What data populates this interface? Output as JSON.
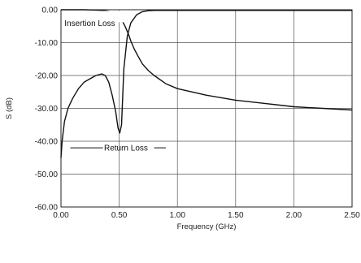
{
  "chart_data": {
    "type": "line",
    "xlabel": "Frequency (GHz)",
    "ylabel": "S (dB)",
    "xlim": [
      0,
      2.5
    ],
    "ylim": [
      -60,
      0
    ],
    "x_ticks": [
      0,
      0.5,
      1.0,
      1.5,
      2.0,
      2.5
    ],
    "x_tick_labels": [
      "0.00",
      "0.50",
      "1.00",
      "1.50",
      "2.00",
      "2.50"
    ],
    "y_ticks": [
      0,
      -10,
      -20,
      -30,
      -40,
      -50,
      -60
    ],
    "y_tick_labels": [
      "0.00",
      "-10.00",
      "-20.00",
      "-30.00",
      "-40.00",
      "-50.00",
      "-60.00"
    ],
    "grid": true,
    "annotations": [
      {
        "text": "Insertion Loss",
        "series": 0
      },
      {
        "text": "Return Loss",
        "series": 1
      }
    ],
    "series": [
      {
        "name": "Insertion Loss",
        "x": [
          0,
          0.1,
          0.2,
          0.3,
          0.35,
          0.4,
          0.45,
          0.48,
          0.5,
          0.52,
          0.55,
          0.58,
          0.6,
          0.63,
          0.66,
          0.7,
          0.75,
          0.8,
          0.9,
          1.0,
          1.25,
          1.5,
          1.75,
          2.0,
          2.25,
          2.5
        ],
        "y": [
          0,
          0,
          0,
          -0.1,
          -0.2,
          -0.4,
          -0.8,
          -1.2,
          -1.8,
          -3.0,
          -5.0,
          -7.5,
          -9.5,
          -12.0,
          -14.0,
          -16.5,
          -18.5,
          -20.0,
          -22.5,
          -24.0,
          -26.0,
          -27.5,
          -28.5,
          -29.5,
          -30.0,
          -30.5
        ]
      },
      {
        "name": "Return Loss",
        "x": [
          0,
          0.01,
          0.03,
          0.06,
          0.1,
          0.15,
          0.2,
          0.25,
          0.3,
          0.35,
          0.38,
          0.41,
          0.44,
          0.47,
          0.49,
          0.505,
          0.52,
          0.54,
          0.57,
          0.6,
          0.65,
          0.7,
          0.75,
          0.8,
          0.83,
          0.845,
          0.86,
          0.9,
          0.95,
          1.0,
          1.05,
          1.1,
          1.15,
          1.2,
          1.25,
          1.3,
          1.35,
          1.4,
          1.44,
          1.47,
          1.5,
          1.55,
          1.6,
          1.7,
          1.8,
          1.9,
          2.0,
          2.2,
          2.5
        ],
        "y": [
          -45,
          -40,
          -34,
          -30,
          -27,
          -24,
          -22,
          -21,
          -20,
          -19.5,
          -20,
          -22,
          -26,
          -31,
          -36,
          -37.5,
          -35,
          -18,
          -8,
          -4,
          -1.5,
          -0.6,
          -0.3,
          -0.2,
          -0.2,
          -0.2,
          -0.2,
          -0.2,
          -0.2,
          -0.2,
          -0.2,
          -0.2,
          -0.2,
          -0.2,
          -0.2,
          -0.2,
          -0.2,
          -0.2,
          -0.2,
          -0.2,
          -0.2,
          -0.2,
          -0.2,
          -0.2,
          -0.2,
          -0.2,
          -0.2,
          -0.2,
          -0.2
        ]
      }
    ]
  }
}
